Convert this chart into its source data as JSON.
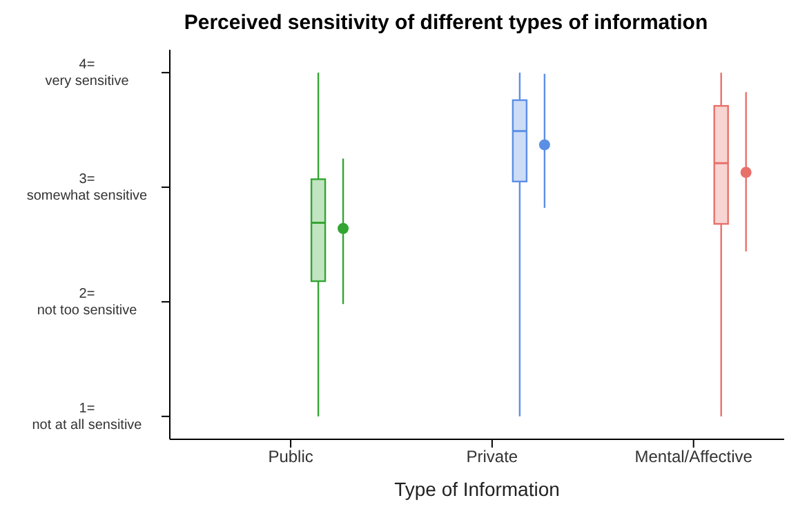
{
  "chart_data": {
    "type": "box",
    "title": "Perceived sensitivity of different types of information",
    "xlabel": "Type of Information",
    "categories": [
      "Public",
      "Private",
      "Mental/Affective"
    ],
    "colors": [
      "#33a532",
      "#5b8fe6",
      "#e8706a"
    ],
    "boxes": [
      {
        "low": 1,
        "q1": 2.18,
        "median": 2.69,
        "q3": 3.07,
        "high": 4
      },
      {
        "low": 1,
        "q1": 3.05,
        "median": 3.49,
        "q3": 3.76,
        "high": 4
      },
      {
        "low": 1,
        "q1": 2.68,
        "median": 3.21,
        "q3": 3.71,
        "high": 4
      }
    ],
    "series": [
      {
        "type": "scatter",
        "colors": [
          "#33a532",
          "#5b8fe6",
          "#e8706a"
        ],
        "x": [
          "Public",
          "Private",
          "Mental/Affective"
        ],
        "values": [
          2.64,
          3.37,
          3.13
        ],
        "errors": [
          [
            1.98,
            3.25
          ],
          [
            2.82,
            3.99
          ],
          [
            2.44,
            3.83
          ]
        ]
      }
    ],
    "ylim": [
      0.8,
      4.2
    ],
    "yticks": [
      {
        "value": 1,
        "label": "1=\nnot at all sensitive"
      },
      {
        "value": 2,
        "label": "2=\nnot too sensitive"
      },
      {
        "value": 3,
        "label": "3=\nsomewhat sensitive"
      },
      {
        "value": 4,
        "label": "4=\nvery sensitive"
      }
    ],
    "grid": false,
    "legend": false,
    "marker": "circle"
  }
}
